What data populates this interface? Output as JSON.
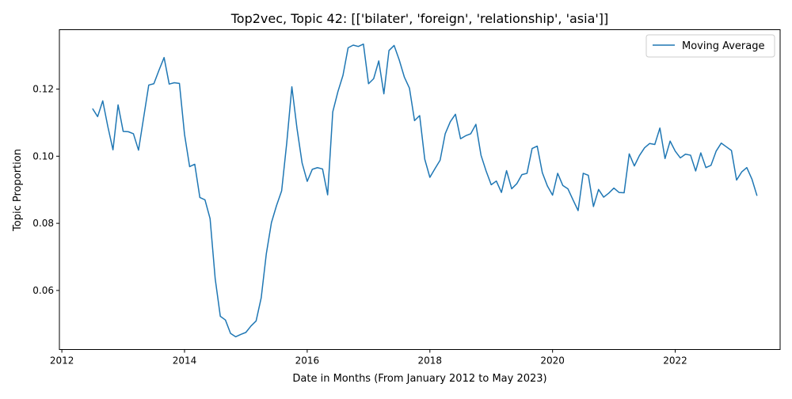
{
  "chart_data": {
    "type": "line",
    "title": "Top2vec, Topic 42: [['bilater', 'foreign', 'relationship', 'asia']]",
    "xlabel": "Date in Months (From January 2012 to May 2023)",
    "ylabel": "Topic Proportion",
    "xlim": [
      2011.96,
      2023.71
    ],
    "ylim": [
      0.0424,
      0.1377
    ],
    "x_ticks": [
      2012,
      2014,
      2016,
      2018,
      2020,
      2022
    ],
    "x_tick_labels": [
      "2012",
      "2014",
      "2016",
      "2018",
      "2020",
      "2022"
    ],
    "y_ticks": [
      0.06,
      0.08,
      0.1,
      0.12
    ],
    "y_tick_labels": [
      "0.06",
      "0.08",
      "0.10",
      "0.12"
    ],
    "legend": {
      "position": "top-right",
      "entries": [
        "Moving Average"
      ]
    },
    "color": "#1f77b4",
    "grid": false,
    "series": [
      {
        "name": "Moving Average",
        "color": "#1f77b4",
        "x": [
          "2012-07",
          "2012-08",
          "2012-09",
          "2012-10",
          "2012-11",
          "2012-12",
          "2013-01",
          "2013-02",
          "2013-03",
          "2013-04",
          "2013-05",
          "2013-06",
          "2013-07",
          "2013-08",
          "2013-09",
          "2013-10",
          "2013-11",
          "2013-12",
          "2014-01",
          "2014-02",
          "2014-03",
          "2014-04",
          "2014-05",
          "2014-06",
          "2014-07",
          "2014-08",
          "2014-09",
          "2014-10",
          "2014-11",
          "2014-12",
          "2015-01",
          "2015-02",
          "2015-03",
          "2015-04",
          "2015-05",
          "2015-06",
          "2015-07",
          "2015-08",
          "2015-09",
          "2015-10",
          "2015-11",
          "2015-12",
          "2016-01",
          "2016-02",
          "2016-03",
          "2016-04",
          "2016-05",
          "2016-06",
          "2016-07",
          "2016-08",
          "2016-09",
          "2016-10",
          "2016-11",
          "2016-12",
          "2017-01",
          "2017-02",
          "2017-03",
          "2017-04",
          "2017-05",
          "2017-06",
          "2017-07",
          "2017-08",
          "2017-09",
          "2017-10",
          "2017-11",
          "2017-12",
          "2018-01",
          "2018-02",
          "2018-03",
          "2018-04",
          "2018-05",
          "2018-06",
          "2018-07",
          "2018-08",
          "2018-09",
          "2018-10",
          "2018-11",
          "2018-12",
          "2019-01",
          "2019-02",
          "2019-03",
          "2019-04",
          "2019-05",
          "2019-06",
          "2019-07",
          "2019-08",
          "2019-09",
          "2019-10",
          "2019-11",
          "2019-12",
          "2020-01",
          "2020-02",
          "2020-03",
          "2020-04",
          "2020-05",
          "2020-06",
          "2020-07",
          "2020-08",
          "2020-09",
          "2020-10",
          "2020-11",
          "2020-12",
          "2021-01",
          "2021-02",
          "2021-03",
          "2021-04",
          "2021-05",
          "2021-06",
          "2021-07",
          "2021-08",
          "2021-09",
          "2021-10",
          "2021-11",
          "2021-12",
          "2022-01",
          "2022-02",
          "2022-03",
          "2022-04",
          "2022-05",
          "2022-06",
          "2022-07",
          "2022-08",
          "2022-09",
          "2022-10",
          "2022-11",
          "2022-12",
          "2023-01",
          "2023-02",
          "2023-03",
          "2023-04",
          "2023-05"
        ],
        "y": [
          0.1142,
          0.1118,
          0.1165,
          0.1088,
          0.1019,
          0.1153,
          0.1074,
          0.1073,
          0.1067,
          0.1018,
          0.1115,
          0.1212,
          0.1216,
          0.1256,
          0.1294,
          0.1215,
          0.1219,
          0.1217,
          0.1065,
          0.0969,
          0.0976,
          0.0877,
          0.087,
          0.0814,
          0.0635,
          0.0523,
          0.0512,
          0.0472,
          0.0462,
          0.0469,
          0.0475,
          0.0494,
          0.0509,
          0.0578,
          0.0709,
          0.0802,
          0.0853,
          0.0897,
          0.104,
          0.1207,
          0.1083,
          0.098,
          0.0925,
          0.0961,
          0.0966,
          0.0962,
          0.0885,
          0.1132,
          0.1192,
          0.1241,
          0.1323,
          0.1331,
          0.1327,
          0.1334,
          0.1216,
          0.1231,
          0.1284,
          0.1186,
          0.1315,
          0.133,
          0.1287,
          0.1236,
          0.1203,
          0.1106,
          0.1121,
          0.0991,
          0.0937,
          0.0963,
          0.0988,
          0.1067,
          0.1103,
          0.1125,
          0.1052,
          0.1061,
          0.1067,
          0.1095,
          0.1003,
          0.0956,
          0.0915,
          0.0926,
          0.0892,
          0.0957,
          0.0903,
          0.0918,
          0.0945,
          0.0949,
          0.1023,
          0.103,
          0.0951,
          0.0911,
          0.0884,
          0.0949,
          0.0913,
          0.0903,
          0.087,
          0.0838,
          0.0949,
          0.0943,
          0.085,
          0.0901,
          0.0878,
          0.089,
          0.0905,
          0.0892,
          0.0891,
          0.1007,
          0.0971,
          0.1002,
          0.1025,
          0.1038,
          0.1035,
          0.1084,
          0.0993,
          0.1045,
          0.1015,
          0.0995,
          0.1006,
          0.1003,
          0.0956,
          0.101,
          0.0966,
          0.0973,
          0.1015,
          0.1039,
          0.1028,
          0.1017,
          0.0929,
          0.0953,
          0.0966,
          0.0932,
          0.0882
        ]
      }
    ]
  }
}
